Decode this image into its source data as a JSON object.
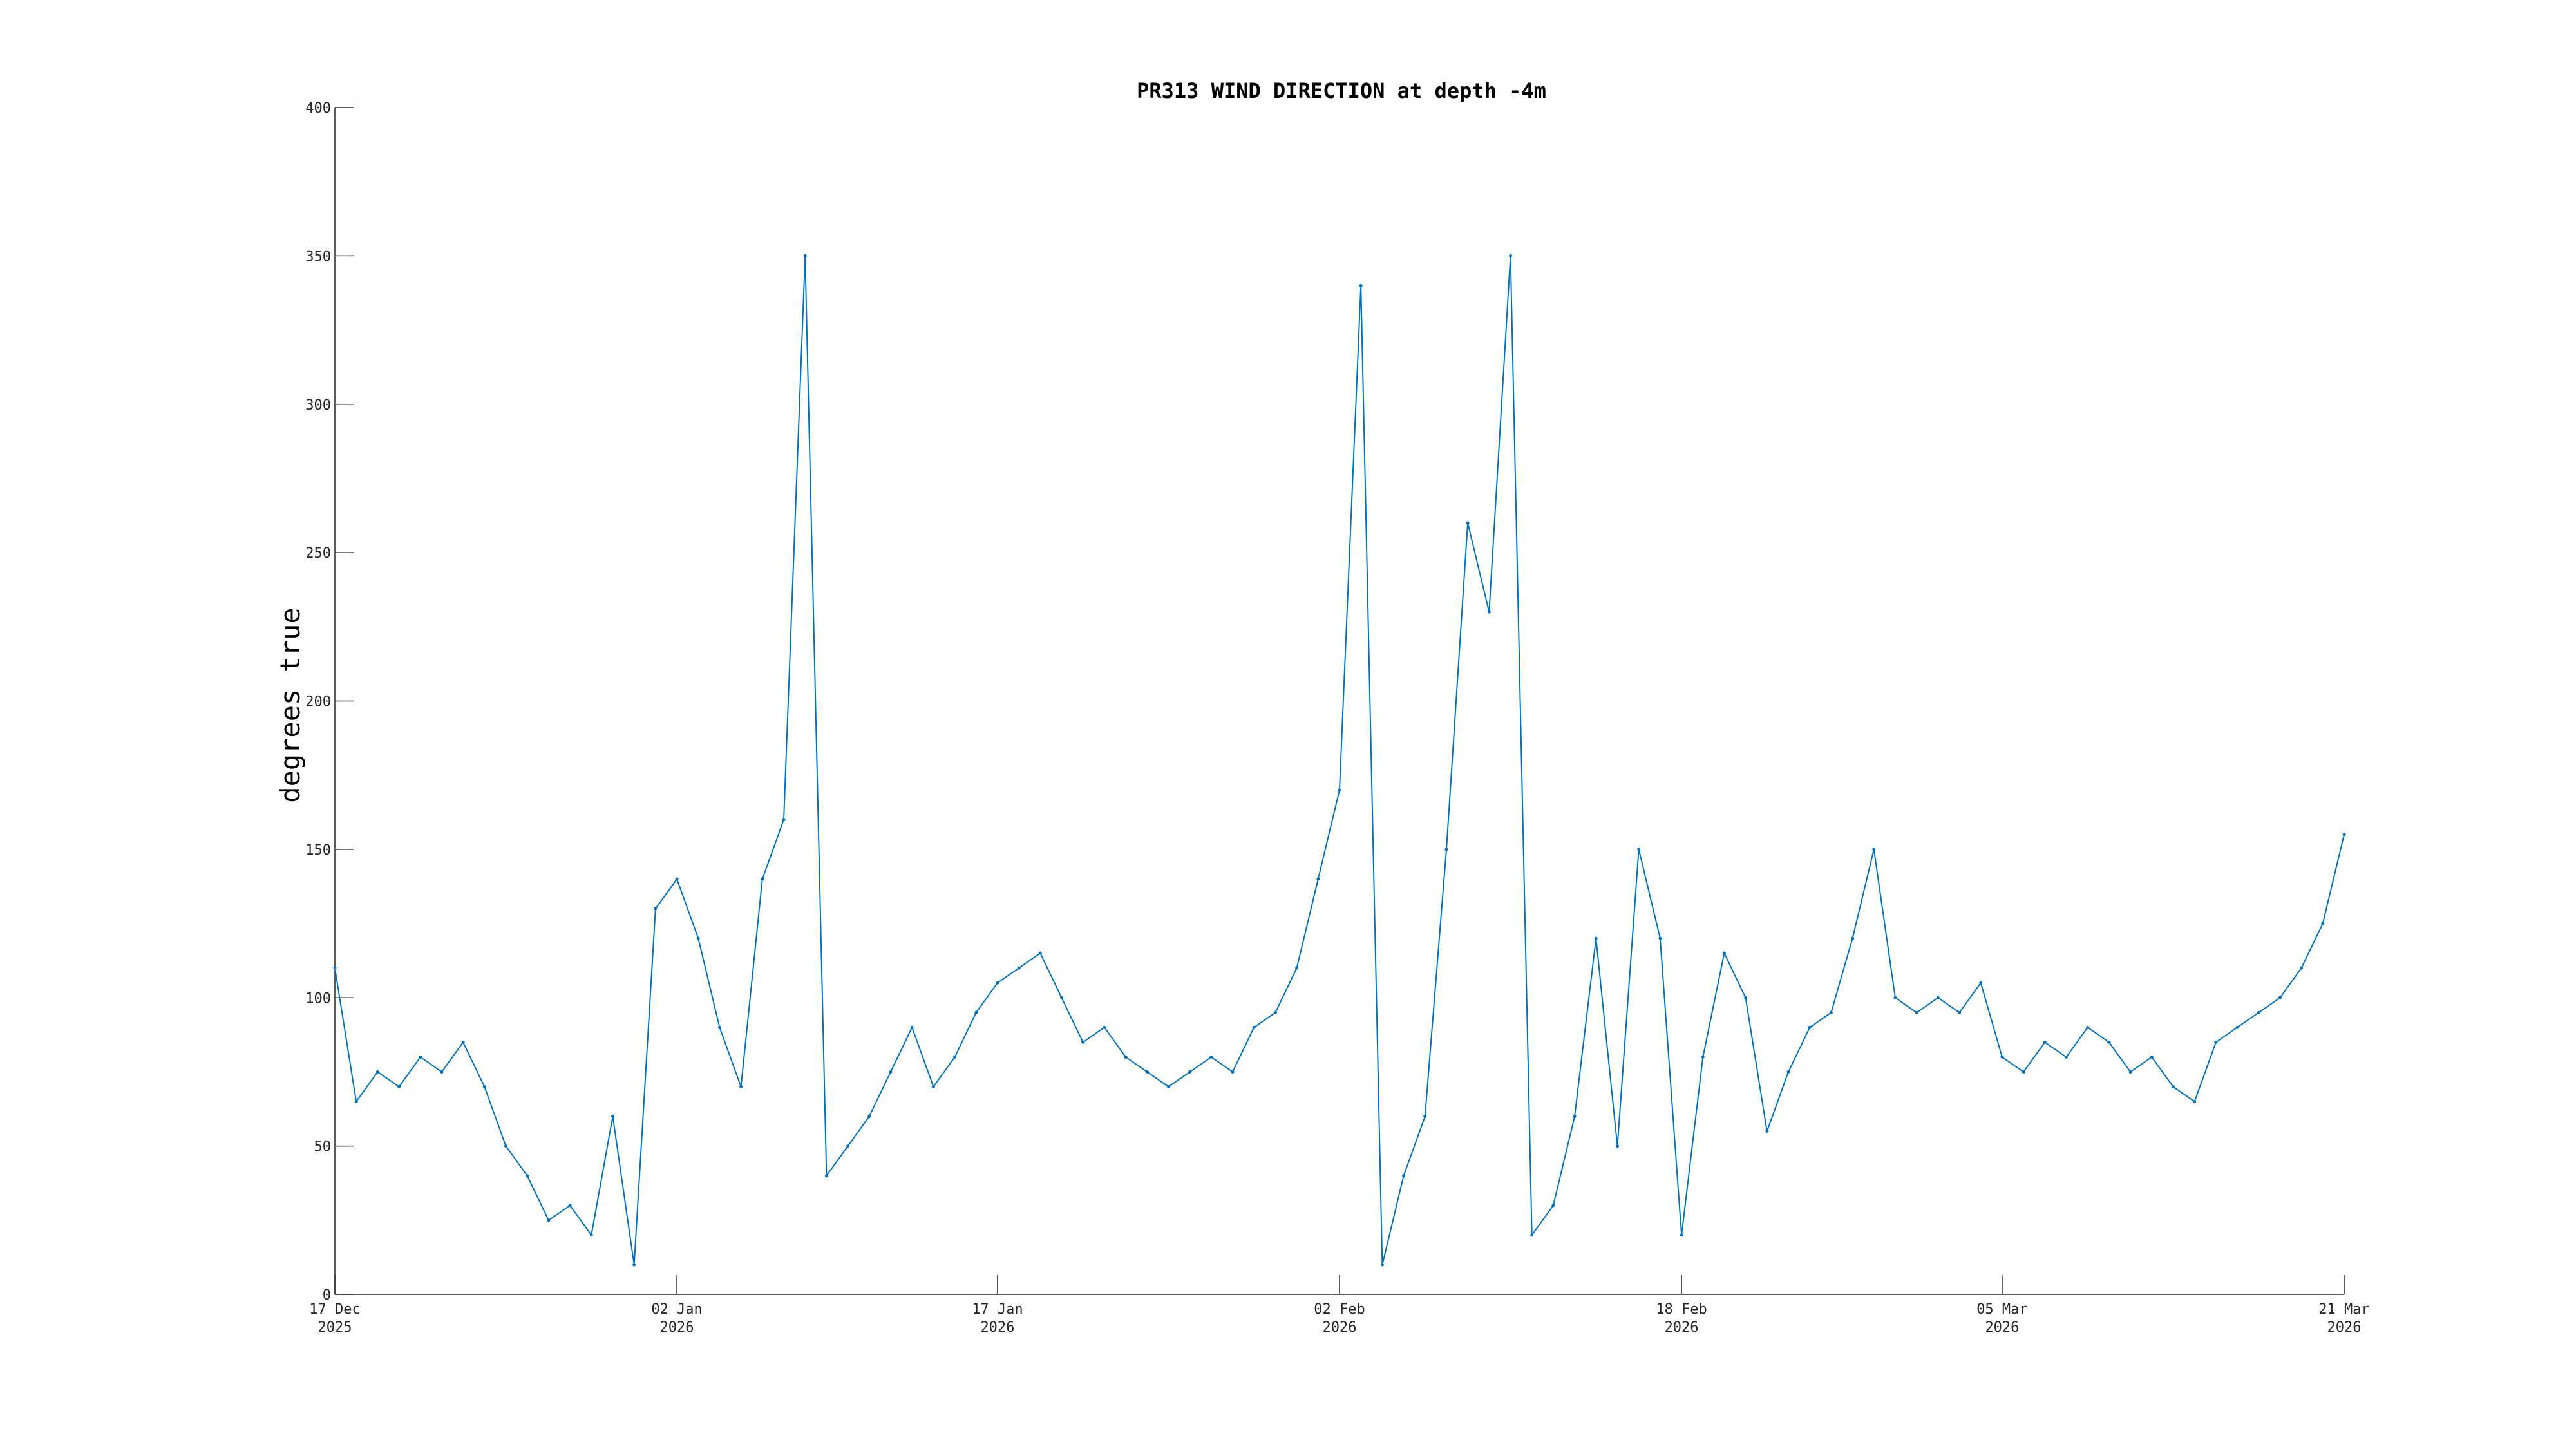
{
  "chart_data": {
    "type": "line",
    "title": "PR313 WIND DIRECTION at depth -4m",
    "xlabel": "",
    "ylabel": "degrees true",
    "ylim": [
      0,
      400
    ],
    "xlim": [
      "2025-12-17",
      "2026-03-21"
    ],
    "yticks": [
      0,
      50,
      100,
      150,
      200,
      250,
      300,
      350,
      400
    ],
    "xticks": [
      {
        "date": "2025-12-17",
        "label": "17 Dec",
        "year": "2025"
      },
      {
        "date": "2026-01-02",
        "label": "02 Jan",
        "year": "2026"
      },
      {
        "date": "2026-01-17",
        "label": "17 Jan",
        "year": "2026"
      },
      {
        "date": "2026-02-02",
        "label": "02 Feb",
        "year": "2026"
      },
      {
        "date": "2026-02-18",
        "label": "18 Feb",
        "year": "2026"
      },
      {
        "date": "2026-03-05",
        "label": "05 Mar",
        "year": "2026"
      },
      {
        "date": "2026-03-21",
        "label": "21 Mar",
        "year": "2026"
      }
    ],
    "grid": false,
    "color": "#0072BD",
    "series": [
      {
        "name": "",
        "x": [
          "2025-12-17",
          "2025-12-18",
          "2025-12-19",
          "2025-12-20",
          "2025-12-21",
          "2025-12-22",
          "2025-12-23",
          "2025-12-24",
          "2025-12-25",
          "2025-12-26",
          "2025-12-27",
          "2025-12-28",
          "2025-12-29",
          "2025-12-30",
          "2025-12-31",
          "2026-01-01",
          "2026-01-02",
          "2026-01-03",
          "2026-01-04",
          "2026-01-05",
          "2026-01-06",
          "2026-01-07",
          "2026-01-08",
          "2026-01-09",
          "2026-01-10",
          "2026-01-11",
          "2026-01-12",
          "2026-01-13",
          "2026-01-14",
          "2026-01-15",
          "2026-01-16",
          "2026-01-17",
          "2026-01-18",
          "2026-01-19",
          "2026-01-20",
          "2026-01-21",
          "2026-01-22",
          "2026-01-23",
          "2026-01-24",
          "2026-01-25",
          "2026-01-26",
          "2026-01-27",
          "2026-01-28",
          "2026-01-29",
          "2026-01-30",
          "2026-01-31",
          "2026-02-01",
          "2026-02-02",
          "2026-02-03",
          "2026-02-04",
          "2026-02-05",
          "2026-02-06",
          "2026-02-07",
          "2026-02-08",
          "2026-02-09",
          "2026-02-10",
          "2026-02-11",
          "2026-02-12",
          "2026-02-13",
          "2026-02-14",
          "2026-02-15",
          "2026-02-16",
          "2026-02-17",
          "2026-02-18",
          "2026-02-19",
          "2026-02-20",
          "2026-02-21",
          "2026-02-22",
          "2026-02-23",
          "2026-02-24",
          "2026-02-25",
          "2026-02-26",
          "2026-02-27",
          "2026-02-28",
          "2026-03-01",
          "2026-03-02",
          "2026-03-03",
          "2026-03-04",
          "2026-03-05",
          "2026-03-06",
          "2026-03-07",
          "2026-03-08",
          "2026-03-09",
          "2026-03-10",
          "2026-03-11",
          "2026-03-12",
          "2026-03-13",
          "2026-03-14",
          "2026-03-15",
          "2026-03-16",
          "2026-03-17",
          "2026-03-18",
          "2026-03-19",
          "2026-03-20",
          "2026-03-21"
        ],
        "y": [
          110,
          65,
          75,
          70,
          80,
          75,
          85,
          70,
          50,
          40,
          25,
          30,
          20,
          60,
          10,
          130,
          140,
          120,
          90,
          70,
          140,
          160,
          350,
          40,
          50,
          60,
          75,
          90,
          70,
          80,
          95,
          105,
          110,
          115,
          100,
          85,
          90,
          80,
          75,
          70,
          75,
          80,
          75,
          90,
          95,
          110,
          140,
          170,
          340,
          10,
          40,
          60,
          150,
          260,
          230,
          350,
          20,
          30,
          60,
          120,
          50,
          150,
          120,
          20,
          80,
          115,
          100,
          55,
          75,
          90,
          95,
          120,
          150,
          100,
          95,
          100,
          95,
          105,
          80,
          75,
          85,
          80,
          90,
          85,
          75,
          80,
          70,
          65,
          85,
          90,
          95,
          100,
          110,
          125,
          155
        ]
      }
    ]
  }
}
